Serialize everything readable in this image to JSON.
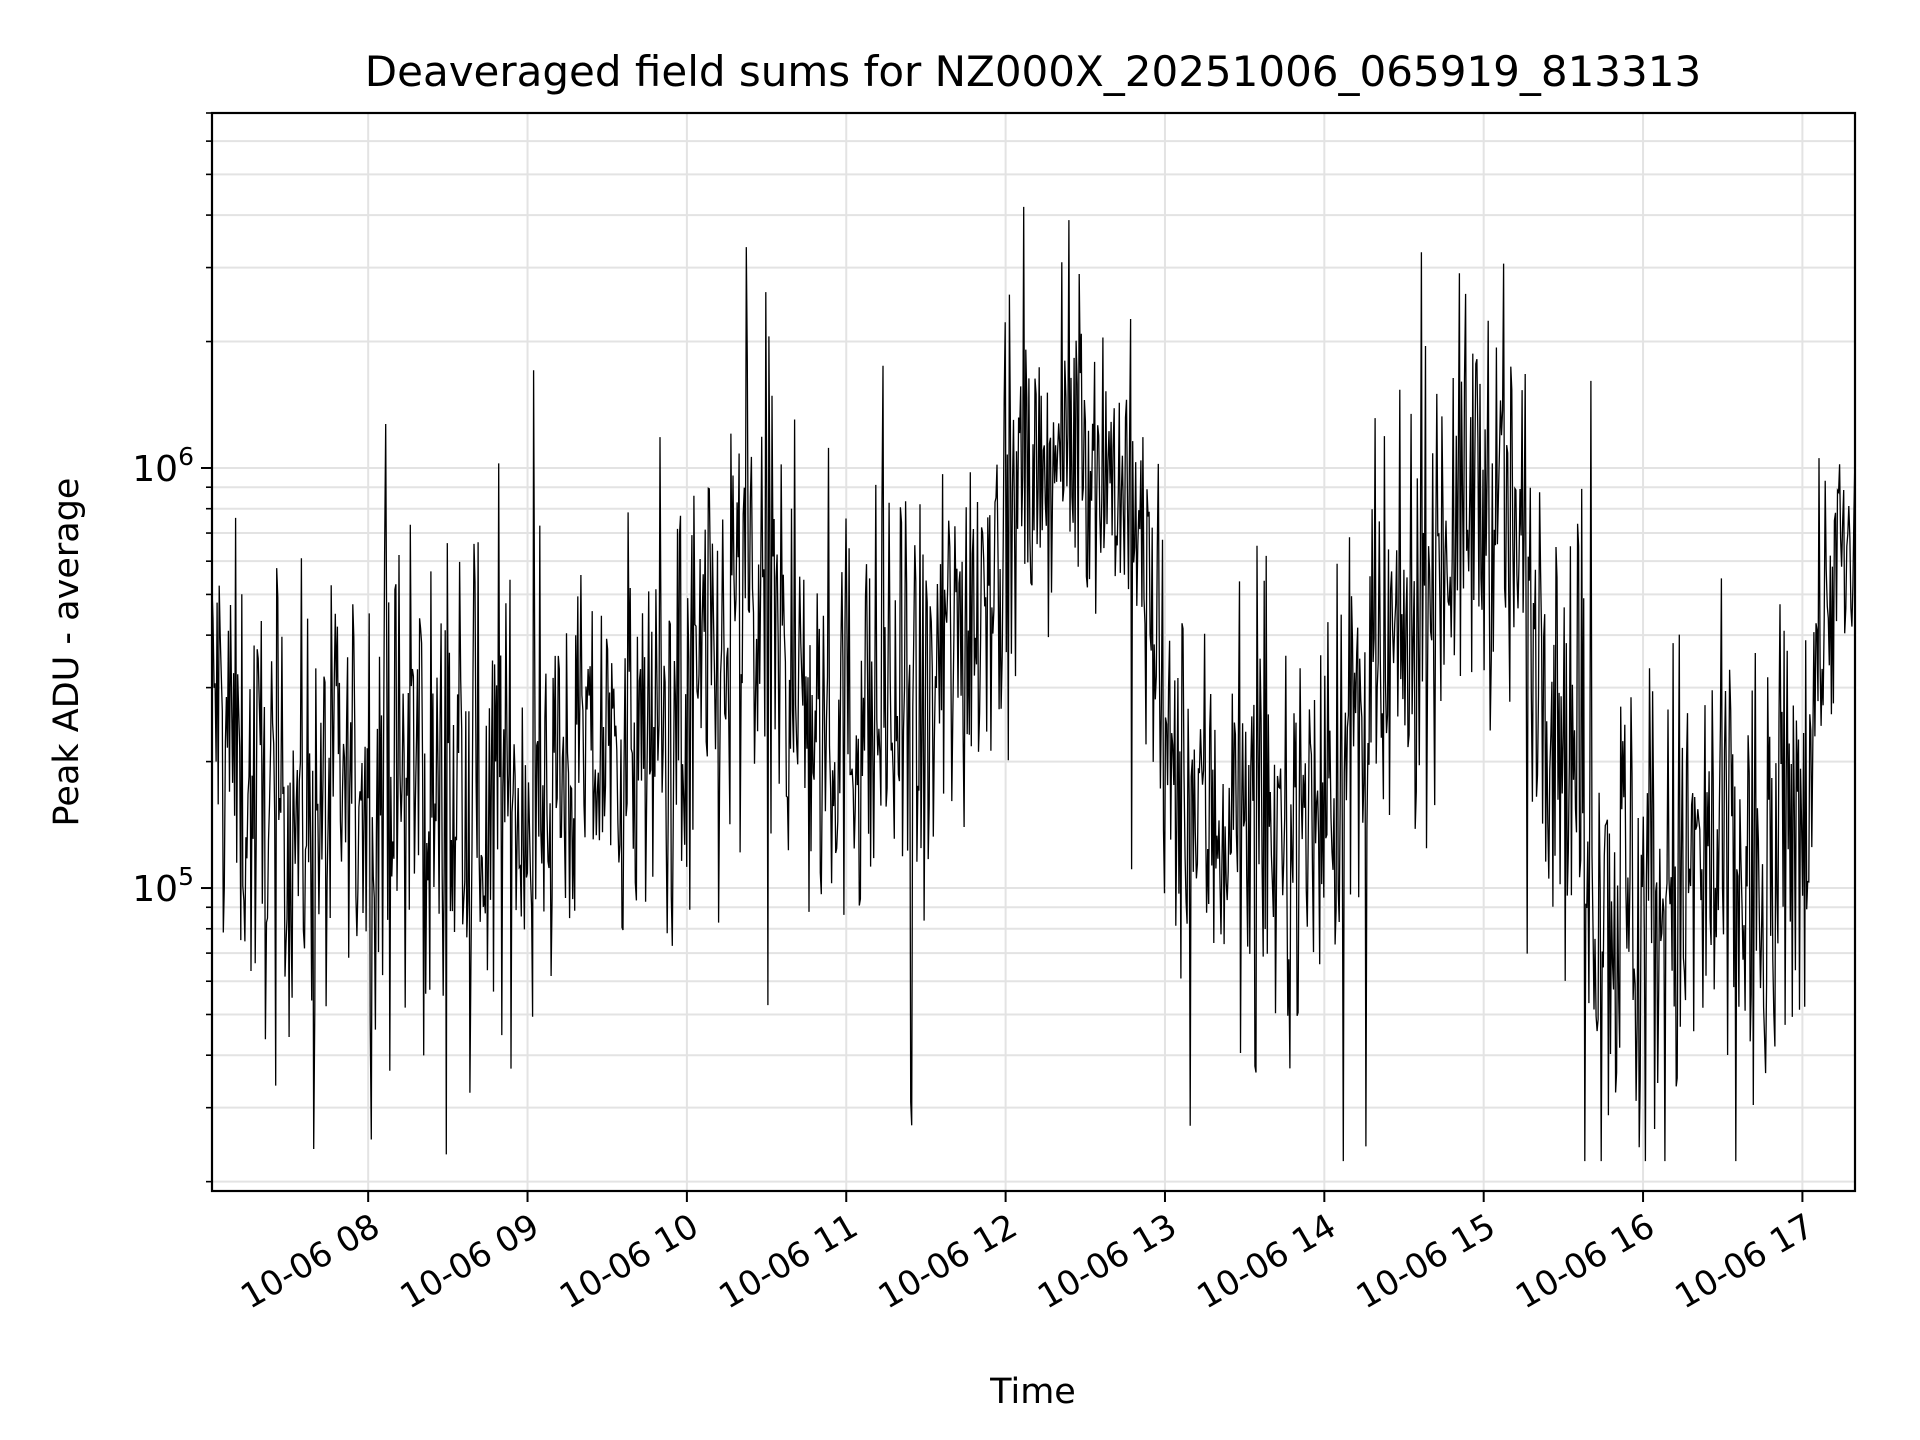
{
  "chart_data": {
    "type": "line",
    "title": "Deaveraged field sums for NZ000X_20251006_065919_813313",
    "xlabel": "Time",
    "ylabel": "Peak ADU - average",
    "yscale": "log",
    "ylim": [
      19000,
      7000000
    ],
    "xlim_hours": [
      7.02,
      17.33
    ],
    "grid": true,
    "x_ticks": [
      {
        "hour": 8,
        "label": "10-06 08"
      },
      {
        "hour": 9,
        "label": "10-06 09"
      },
      {
        "hour": 10,
        "label": "10-06 10"
      },
      {
        "hour": 11,
        "label": "10-06 11"
      },
      {
        "hour": 12,
        "label": "10-06 12"
      },
      {
        "hour": 13,
        "label": "10-06 13"
      },
      {
        "hour": 14,
        "label": "10-06 14"
      },
      {
        "hour": 15,
        "label": "10-06 15"
      },
      {
        "hour": 16,
        "label": "10-06 16"
      },
      {
        "hour": 17,
        "label": "10-06 17"
      }
    ],
    "y_major_ticks": [
      {
        "value": 100000,
        "base": "10",
        "exp": "5"
      },
      {
        "value": 1000000,
        "base": "10",
        "exp": "6"
      }
    ],
    "series": [
      {
        "name": "Peak ADU - average",
        "color": "#000000",
        "x_hours": [
          7.0,
          7.25,
          7.5,
          7.75,
          8.0,
          8.25,
          8.5,
          8.75,
          9.0,
          9.25,
          9.5,
          9.75,
          10.0,
          10.25,
          10.4,
          10.55,
          10.75,
          11.0,
          11.25,
          11.5,
          11.75,
          12.0,
          12.25,
          12.5,
          12.75,
          13.0,
          13.25,
          13.5,
          13.75,
          14.0,
          14.25,
          14.5,
          14.75,
          15.0,
          15.25,
          15.5,
          15.75,
          16.0,
          16.25,
          16.5,
          16.75,
          17.0,
          17.2,
          17.33
        ],
        "median": [
          300000,
          160000,
          150000,
          160000,
          175000,
          180000,
          150000,
          160000,
          170000,
          190000,
          210000,
          220000,
          260000,
          350000,
          500000,
          400000,
          250000,
          250000,
          260000,
          230000,
          450000,
          700000,
          1000000,
          1150000,
          900000,
          180000,
          150000,
          140000,
          130000,
          160000,
          250000,
          350000,
          700000,
          900000,
          600000,
          250000,
          90000,
          100000,
          100000,
          110000,
          90000,
          150000,
          600000,
          550000
        ],
        "spread": [
          0.45,
          0.45,
          0.45,
          0.45,
          0.45,
          0.5,
          0.5,
          0.45,
          0.45,
          0.4,
          0.35,
          0.35,
          0.5,
          0.55,
          0.6,
          0.55,
          0.45,
          0.45,
          0.45,
          0.5,
          0.45,
          0.4,
          0.3,
          0.3,
          0.35,
          0.4,
          0.4,
          0.4,
          0.4,
          0.4,
          0.45,
          0.45,
          0.45,
          0.45,
          0.45,
          0.5,
          0.5,
          0.55,
          0.55,
          0.55,
          0.55,
          0.45,
          0.3,
          0.3
        ],
        "point_count": 1600
      }
    ]
  }
}
